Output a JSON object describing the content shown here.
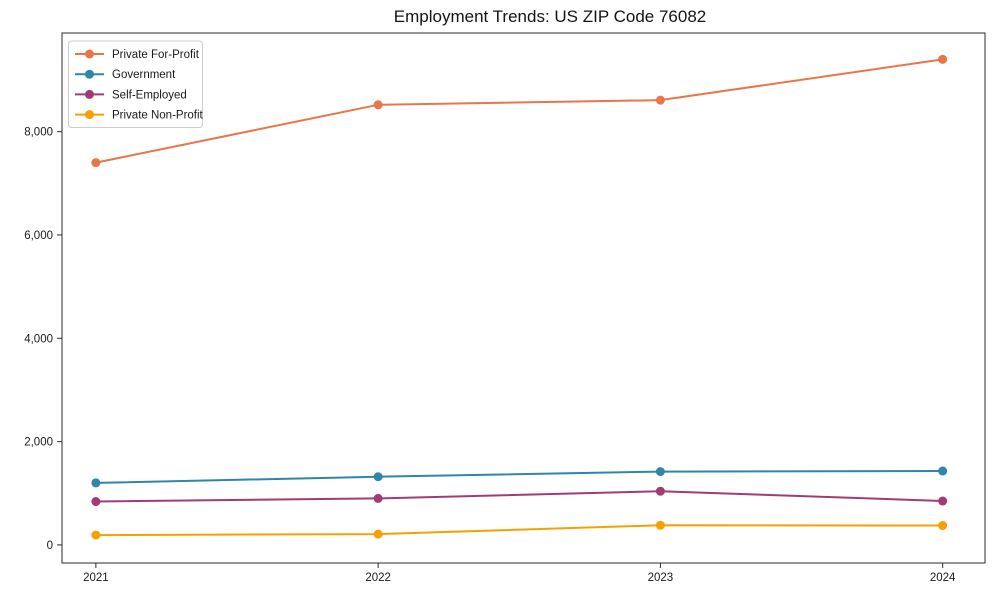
{
  "figure": {
    "background": "#ffffff",
    "frame_color": "#2b2b2b",
    "legend_border_color": "#cccccc",
    "legend_background": "#ffffff"
  },
  "chart_data": {
    "type": "line",
    "title": "Employment Trends: US ZIP Code 76082",
    "xlabel": "",
    "ylabel": "",
    "x": [
      2021,
      2022,
      2023,
      2024
    ],
    "series": [
      {
        "name": "Private For-Profit",
        "color": "#E8764B",
        "values": [
          7400,
          8520,
          8610,
          9400
        ]
      },
      {
        "name": "Government",
        "color": "#2E86AB",
        "values": [
          1200,
          1320,
          1420,
          1430
        ]
      },
      {
        "name": "Self-Employed",
        "color": "#A23B72",
        "values": [
          840,
          900,
          1040,
          850
        ]
      },
      {
        "name": "Private Non-Profit",
        "color": "#F5A201",
        "values": [
          190,
          210,
          380,
          375
        ]
      }
    ],
    "xticks": {
      "values": [
        2021,
        2022,
        2023,
        2024
      ],
      "labels": [
        "2021",
        "2022",
        "2023",
        "2024"
      ]
    },
    "yticks": {
      "values": [
        0,
        2000,
        4000,
        6000,
        8000
      ],
      "labels": [
        "0",
        "2,000",
        "4,000",
        "6,000",
        "8,000"
      ]
    },
    "xlim": [
      2020.88,
      2024.15
    ],
    "ylim": [
      -350,
      9910
    ],
    "grid": false,
    "legend": {
      "position": "upper-left",
      "entries": [
        "Private For-Profit",
        "Government",
        "Self-Employed",
        "Private Non-Profit"
      ]
    }
  }
}
